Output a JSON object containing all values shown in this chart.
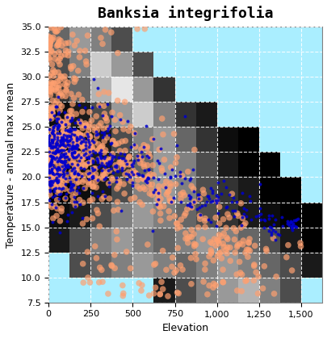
{
  "title": "Banksia integrifolia",
  "xlabel": "Elevation",
  "ylabel": "Temperature - annual max mean",
  "xlim": [
    0,
    1625
  ],
  "ylim": [
    7.5,
    35.0
  ],
  "xticks": [
    0,
    250,
    500,
    750,
    1000,
    1250,
    1500
  ],
  "yticks": [
    7.5,
    10.0,
    12.5,
    15.0,
    17.5,
    20.0,
    22.5,
    25.0,
    27.5,
    30.0,
    32.5,
    35.0
  ],
  "bg_color": "#aaeeff",
  "grid_color": "white",
  "grid_linestyle": "--",
  "orange_color": "#FFA070",
  "blue_color": "#0000CC",
  "orange_alpha": 0.7,
  "blue_alpha": 0.85,
  "orange_size": 30,
  "blue_size": 8,
  "title_fontsize": 13,
  "label_fontsize": 9,
  "tick_fontsize": 8
}
